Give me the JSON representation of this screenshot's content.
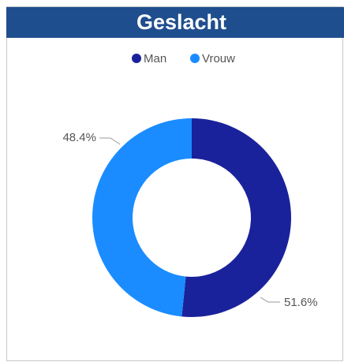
{
  "chart_data": {
    "type": "donut",
    "title": "Geslacht",
    "categories": [
      "Man",
      "Vrouw"
    ],
    "values": [
      51.6,
      48.4
    ],
    "value_labels": [
      "51.6%",
      "48.4%"
    ],
    "colors": [
      "#1a229b",
      "#1a8cff"
    ]
  }
}
